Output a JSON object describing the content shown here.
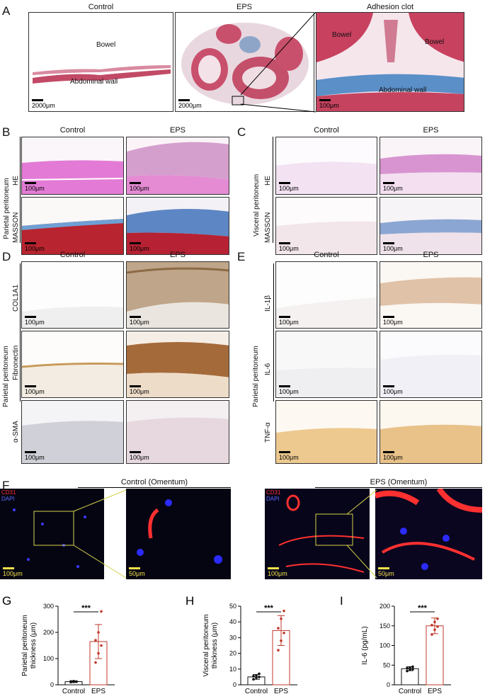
{
  "panels": {
    "A": {
      "letter": "A",
      "headers": [
        "Control",
        "EPS",
        "Adhesion clot"
      ],
      "annotations": {
        "bowel": "Bowel",
        "abdominal_wall": "Abdominal wall"
      },
      "scale_large": "2000μm",
      "scale_small": "100μm"
    },
    "B": {
      "letter": "B",
      "col_control": "Control",
      "col_eps": "EPS",
      "side_label": "Parietal peritoneum",
      "row1": "HE",
      "row2": "MASSON",
      "scale": "100μm"
    },
    "C": {
      "letter": "C",
      "col_control": "Control",
      "col_eps": "EPS",
      "side_label": "Visceral peritoneum",
      "row1": "HE",
      "row2": "MASSON",
      "scale": "100μm"
    },
    "D": {
      "letter": "D",
      "col_control": "Control",
      "col_eps": "EPS",
      "side_label": "Parietal peritoneum",
      "rows": [
        "COL1A1",
        "Fibronectin",
        "α-SMA"
      ],
      "scale": "100μm"
    },
    "E": {
      "letter": "E",
      "col_control": "Control",
      "col_eps": "EPS",
      "side_label": "Parietal peritoneum",
      "rows": [
        "IL-1β",
        "IL-6",
        "TNF-α"
      ],
      "scale": "100μm"
    },
    "F": {
      "letter": "F",
      "title_control": "Control (Omentum)",
      "title_eps": "EPS (Omentum)",
      "stain1": "CD31",
      "stain2": "DAPI",
      "scale_big": "100μm",
      "scale_zoom": "50μm"
    }
  },
  "chart_data": [
    {
      "letter": "G",
      "type": "bar",
      "categories": [
        "Control",
        "EPS"
      ],
      "values": [
        12,
        165
      ],
      "errors": [
        3,
        65
      ],
      "points": [
        [
          10,
          11,
          12,
          13,
          14,
          12
        ],
        [
          85,
          120,
          150,
          170,
          200,
          280
        ]
      ],
      "ylabel_line1": "Parietal peritoneum",
      "ylabel_line2": "thickness (μm)",
      "ylim": [
        0,
        300
      ],
      "yticks": [
        "0",
        "100",
        "200",
        "300"
      ],
      "ytick_values": [
        0,
        100,
        200,
        300
      ],
      "significance": "***",
      "colors": [
        "#111111",
        "#c0392b"
      ]
    },
    {
      "letter": "H",
      "type": "bar",
      "categories": [
        "Control",
        "EPS"
      ],
      "values": [
        5,
        34.5
      ],
      "errors": [
        1.5,
        9.5
      ],
      "points": [
        [
          3.5,
          4.5,
          5,
          5.5,
          6,
          7
        ],
        [
          22,
          28,
          33,
          36,
          42,
          47
        ]
      ],
      "ylabel_line1": "Visceral peritoneum",
      "ylabel_line2": "thickness (μm)",
      "ylim": [
        0,
        50
      ],
      "yticks": [
        "0",
        "10",
        "20",
        "30",
        "40",
        "50"
      ],
      "ytick_values": [
        0,
        10,
        20,
        30,
        40,
        50
      ],
      "significance": "***",
      "colors": [
        "#111111",
        "#c0392b"
      ]
    },
    {
      "letter": "I",
      "type": "bar",
      "categories": [
        "Control",
        "EPS"
      ],
      "values": [
        41,
        150
      ],
      "errors": [
        5,
        20
      ],
      "points": [
        [
          35,
          38,
          40,
          42,
          44,
          46
        ],
        [
          128,
          140,
          148,
          152,
          160,
          168
        ]
      ],
      "ylabel_line1": "IL-6  (pg/mL)",
      "ylabel_line2": "",
      "ylim": [
        0,
        200
      ],
      "yticks": [
        "0",
        "50",
        "100",
        "150",
        "200"
      ],
      "ytick_values": [
        0,
        50,
        100,
        150,
        200
      ],
      "significance": "***",
      "colors": [
        "#111111",
        "#c0392b"
      ]
    }
  ]
}
